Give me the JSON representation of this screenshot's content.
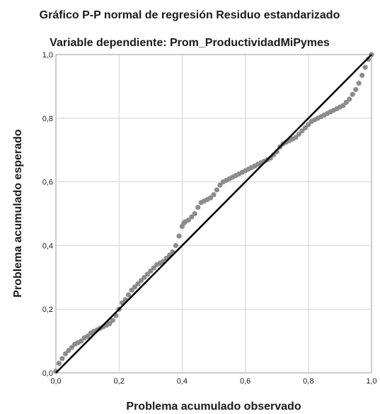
{
  "chart_data": {
    "type": "scatter",
    "title": "Gráfico P-P normal de regresión Residuo estandarizado",
    "subtitle": "Variable dependiente: Prom_ProductividadMiPymes",
    "xlabel": "Problema acumulado observado",
    "ylabel": "Problema acumulado esperado",
    "xlim": [
      0,
      1
    ],
    "ylim": [
      0,
      1
    ],
    "x_ticks": [
      "0,0",
      "0,2",
      "0,4",
      "0,6",
      "0,8",
      "1,0"
    ],
    "y_ticks": [
      "0,0",
      "0,2",
      "0,4",
      "0,6",
      "0,8",
      "1,0"
    ],
    "grid": true,
    "reference_line": {
      "from": [
        0,
        0
      ],
      "to": [
        1,
        1
      ]
    },
    "colors": {
      "points": "#8c8c8c",
      "reference_line": "#000000",
      "grid": "#d2d2d2",
      "frame": "#9a9a9a"
    },
    "series": [
      {
        "x": [
          0.0,
          0.01,
          0.02,
          0.03,
          0.04,
          0.05,
          0.06,
          0.07,
          0.08,
          0.09,
          0.1,
          0.11,
          0.12,
          0.13,
          0.14,
          0.15,
          0.16,
          0.17,
          0.18,
          0.19,
          0.2,
          0.21,
          0.22,
          0.23,
          0.24,
          0.25,
          0.26,
          0.27,
          0.28,
          0.29,
          0.3,
          0.31,
          0.32,
          0.33,
          0.34,
          0.35,
          0.36,
          0.37,
          0.38,
          0.39,
          0.4,
          0.405,
          0.41,
          0.42,
          0.43,
          0.44,
          0.45,
          0.46,
          0.47,
          0.48,
          0.49,
          0.5,
          0.51,
          0.52,
          0.53,
          0.54,
          0.55,
          0.56,
          0.57,
          0.58,
          0.59,
          0.6,
          0.61,
          0.62,
          0.63,
          0.64,
          0.65,
          0.66,
          0.67,
          0.68,
          0.69,
          0.7,
          0.71,
          0.72,
          0.73,
          0.74,
          0.75,
          0.76,
          0.77,
          0.78,
          0.79,
          0.8,
          0.81,
          0.82,
          0.83,
          0.84,
          0.85,
          0.86,
          0.87,
          0.88,
          0.89,
          0.9,
          0.91,
          0.92,
          0.93,
          0.94,
          0.95,
          0.96,
          0.97,
          0.98,
          0.99,
          1.0
        ],
        "y": [
          0.005,
          0.03,
          0.045,
          0.06,
          0.07,
          0.08,
          0.09,
          0.095,
          0.1,
          0.11,
          0.115,
          0.125,
          0.13,
          0.135,
          0.14,
          0.145,
          0.15,
          0.155,
          0.165,
          0.18,
          0.2,
          0.22,
          0.23,
          0.245,
          0.26,
          0.27,
          0.28,
          0.29,
          0.3,
          0.31,
          0.32,
          0.33,
          0.34,
          0.345,
          0.35,
          0.36,
          0.37,
          0.38,
          0.4,
          0.43,
          0.46,
          0.47,
          0.475,
          0.48,
          0.49,
          0.5,
          0.52,
          0.535,
          0.54,
          0.545,
          0.55,
          0.56,
          0.575,
          0.59,
          0.6,
          0.605,
          0.61,
          0.615,
          0.62,
          0.625,
          0.63,
          0.635,
          0.64,
          0.645,
          0.65,
          0.655,
          0.66,
          0.665,
          0.67,
          0.675,
          0.685,
          0.695,
          0.71,
          0.72,
          0.725,
          0.73,
          0.735,
          0.74,
          0.75,
          0.76,
          0.77,
          0.78,
          0.79,
          0.795,
          0.8,
          0.805,
          0.81,
          0.815,
          0.82,
          0.825,
          0.83,
          0.835,
          0.84,
          0.85,
          0.86,
          0.875,
          0.89,
          0.91,
          0.935,
          0.96,
          0.985,
          1.0
        ]
      }
    ]
  }
}
